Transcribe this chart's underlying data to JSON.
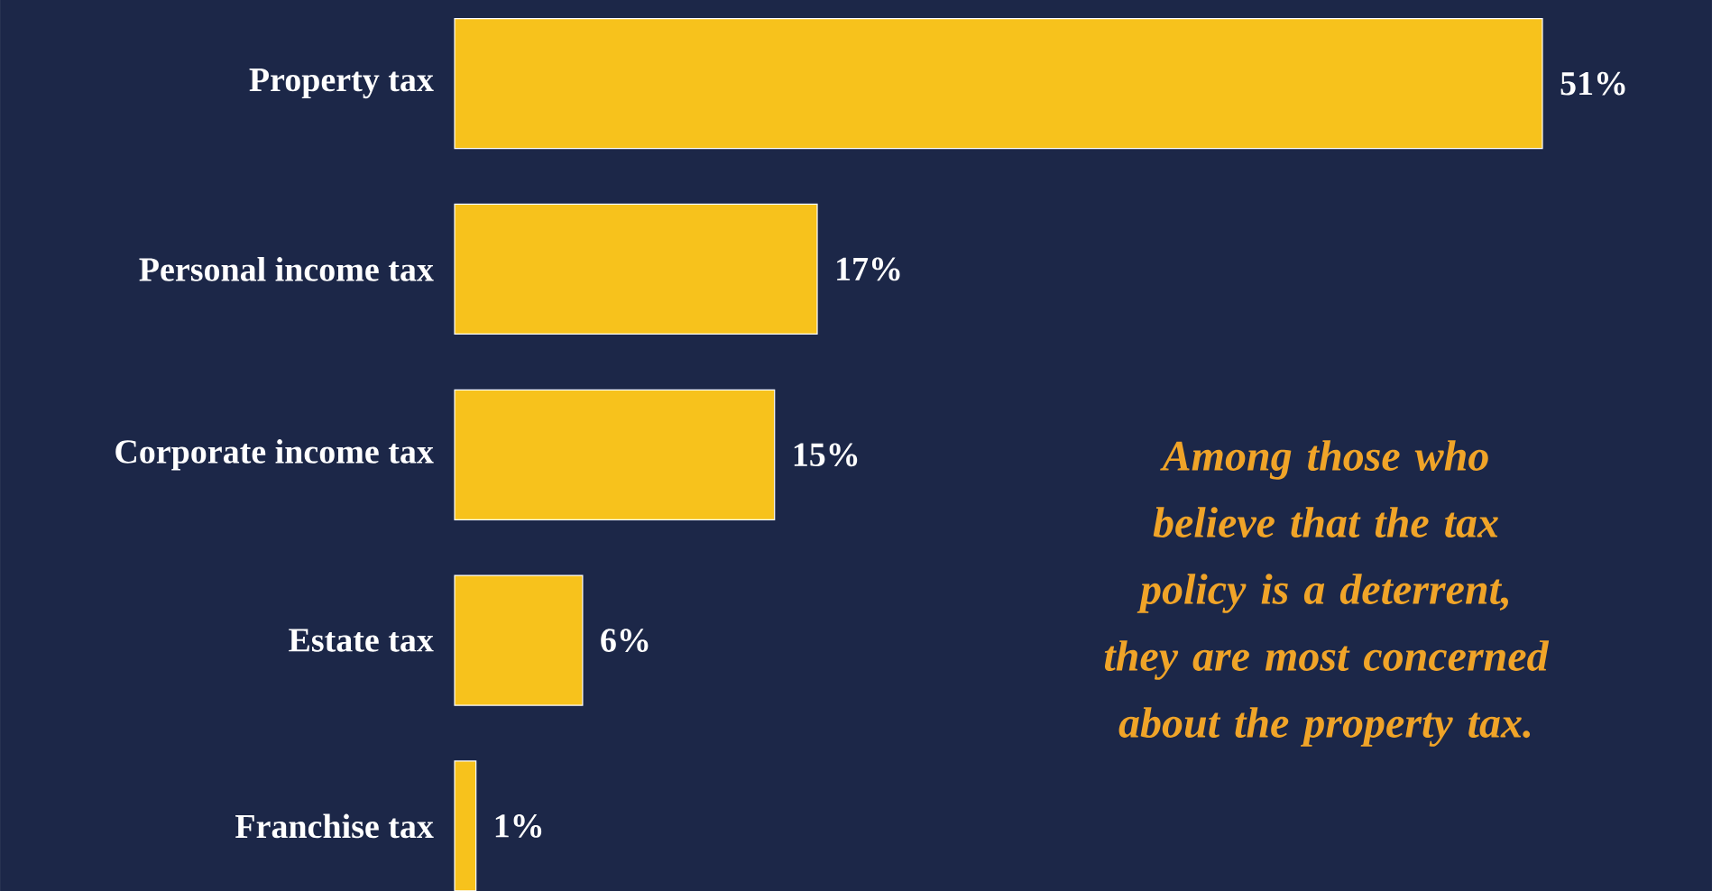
{
  "chart_data": {
    "type": "bar",
    "orientation": "horizontal",
    "categories": [
      "Property tax",
      "Personal income tax",
      "Corporate income tax",
      "Estate tax",
      "Franchise tax"
    ],
    "values": [
      51,
      17,
      15,
      6,
      1
    ],
    "value_labels": [
      "51%",
      "17%",
      "15%",
      "6%",
      "1%"
    ],
    "color": "#f7c21c",
    "annotations": [
      "Among those who believe that the tax policy is  a deterrent, they are most concerned about the property tax."
    ]
  }
}
